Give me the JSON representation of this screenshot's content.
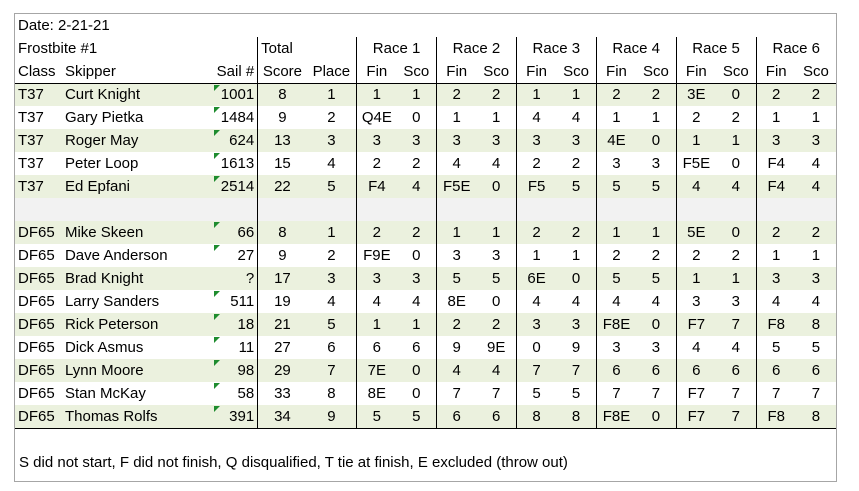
{
  "date": "Date: 2-21-21",
  "event": "Frostbite #1",
  "headers": {
    "class": "Class",
    "skipper": "Skipper",
    "sail": "Sail #",
    "total": "Total",
    "score": "Score",
    "place": "Place",
    "fin": "Fin",
    "sco": "Sco"
  },
  "races": [
    "Race 1",
    "Race 2",
    "Race 3",
    "Race 4",
    "Race 5",
    "Race 6"
  ],
  "colors": {
    "band": "#ebf1de",
    "blank_row": "#f2f2f2",
    "comment_marker": "#1e8c2e"
  },
  "groups": [
    [
      {
        "class": "T37",
        "skipper": "Curt Knight",
        "sail": "1001",
        "score": "8",
        "place": "1",
        "races": [
          [
            "1",
            "1"
          ],
          [
            "2",
            "2"
          ],
          [
            "1",
            "1"
          ],
          [
            "2",
            "2"
          ],
          [
            "3E",
            "0"
          ],
          [
            "2",
            "2"
          ]
        ]
      },
      {
        "class": "T37",
        "skipper": "Gary Pietka",
        "sail": "1484",
        "score": "9",
        "place": "2",
        "races": [
          [
            "Q4E",
            "0"
          ],
          [
            "1",
            "1"
          ],
          [
            "4",
            "4"
          ],
          [
            "1",
            "1"
          ],
          [
            "2",
            "2"
          ],
          [
            "1",
            "1"
          ]
        ]
      },
      {
        "class": "T37",
        "skipper": "Roger May",
        "sail": "624",
        "score": "13",
        "place": "3",
        "races": [
          [
            "3",
            "3"
          ],
          [
            "3",
            "3"
          ],
          [
            "3",
            "3"
          ],
          [
            "4E",
            "0"
          ],
          [
            "1",
            "1"
          ],
          [
            "3",
            "3"
          ]
        ]
      },
      {
        "class": "T37",
        "skipper": "Peter Loop",
        "sail": "1613",
        "score": "15",
        "place": "4",
        "races": [
          [
            "2",
            "2"
          ],
          [
            "4",
            "4"
          ],
          [
            "2",
            "2"
          ],
          [
            "3",
            "3"
          ],
          [
            "F5E",
            "0"
          ],
          [
            "F4",
            "4"
          ]
        ]
      },
      {
        "class": "T37",
        "skipper": "Ed Epfani",
        "sail": "2514",
        "score": "22",
        "place": "5",
        "races": [
          [
            "F4",
            "4"
          ],
          [
            "F5E",
            "0"
          ],
          [
            "F5",
            "5"
          ],
          [
            "5",
            "5"
          ],
          [
            "4",
            "4"
          ],
          [
            "F4",
            "4"
          ]
        ]
      }
    ],
    [
      {
        "class": "DF65",
        "skipper": "Mike Skeen",
        "sail": "66",
        "score": "8",
        "place": "1",
        "races": [
          [
            "2",
            "2"
          ],
          [
            "1",
            "1"
          ],
          [
            "2",
            "2"
          ],
          [
            "1",
            "1"
          ],
          [
            "5E",
            "0"
          ],
          [
            "2",
            "2"
          ]
        ]
      },
      {
        "class": "DF65",
        "skipper": "Dave Anderson",
        "sail": "27",
        "score": "9",
        "place": "2",
        "races": [
          [
            "F9E",
            "0"
          ],
          [
            "3",
            "3"
          ],
          [
            "1",
            "1"
          ],
          [
            "2",
            "2"
          ],
          [
            "2",
            "2"
          ],
          [
            "1",
            "1"
          ]
        ]
      },
      {
        "class": "DF65",
        "skipper": "Brad Knight",
        "sail": "?",
        "score": "17",
        "place": "3",
        "races": [
          [
            "3",
            "3"
          ],
          [
            "5",
            "5"
          ],
          [
            "6E",
            "0"
          ],
          [
            "5",
            "5"
          ],
          [
            "1",
            "1"
          ],
          [
            "3",
            "3"
          ]
        ]
      },
      {
        "class": "DF65",
        "skipper": "Larry Sanders",
        "sail": "511",
        "score": "19",
        "place": "4",
        "races": [
          [
            "4",
            "4"
          ],
          [
            "8E",
            "0"
          ],
          [
            "4",
            "4"
          ],
          [
            "4",
            "4"
          ],
          [
            "3",
            "3"
          ],
          [
            "4",
            "4"
          ]
        ]
      },
      {
        "class": "DF65",
        "skipper": "Rick Peterson",
        "sail": "18",
        "score": "21",
        "place": "5",
        "races": [
          [
            "1",
            "1"
          ],
          [
            "2",
            "2"
          ],
          [
            "3",
            "3"
          ],
          [
            "F8E",
            "0"
          ],
          [
            "F7",
            "7"
          ],
          [
            "F8",
            "8"
          ]
        ]
      },
      {
        "class": "DF65",
        "skipper": "Dick Asmus",
        "sail": "11",
        "score": "27",
        "place": "6",
        "races": [
          [
            "6",
            "6"
          ],
          [
            "9",
            "9E"
          ],
          [
            "0",
            "9"
          ],
          [
            "3",
            "3"
          ],
          [
            "4",
            "4"
          ],
          [
            "5",
            "5"
          ]
        ]
      },
      {
        "class": "DF65",
        "skipper": "Lynn Moore",
        "sail": "98",
        "score": "29",
        "place": "7",
        "races": [
          [
            "7E",
            "0"
          ],
          [
            "4",
            "4"
          ],
          [
            "7",
            "7"
          ],
          [
            "6",
            "6"
          ],
          [
            "6",
            "6"
          ],
          [
            "6",
            "6"
          ]
        ]
      },
      {
        "class": "DF65",
        "skipper": "Stan McKay",
        "sail": "58",
        "score": "33",
        "place": "8",
        "races": [
          [
            "8E",
            "0"
          ],
          [
            "7",
            "7"
          ],
          [
            "5",
            "5"
          ],
          [
            "7",
            "7"
          ],
          [
            "F7",
            "7"
          ],
          [
            "7",
            "7"
          ]
        ]
      },
      {
        "class": "DF65",
        "skipper": "Thomas Rolfs",
        "sail": "391",
        "score": "34",
        "place": "9",
        "races": [
          [
            "5",
            "5"
          ],
          [
            "6",
            "6"
          ],
          [
            "8",
            "8"
          ],
          [
            "F8E",
            "0"
          ],
          [
            "F7",
            "7"
          ],
          [
            "F8",
            "8"
          ]
        ]
      }
    ]
  ],
  "footer": "S did not start, F did not finish, Q disqualified, T tie at finish, E excluded (throw out)"
}
